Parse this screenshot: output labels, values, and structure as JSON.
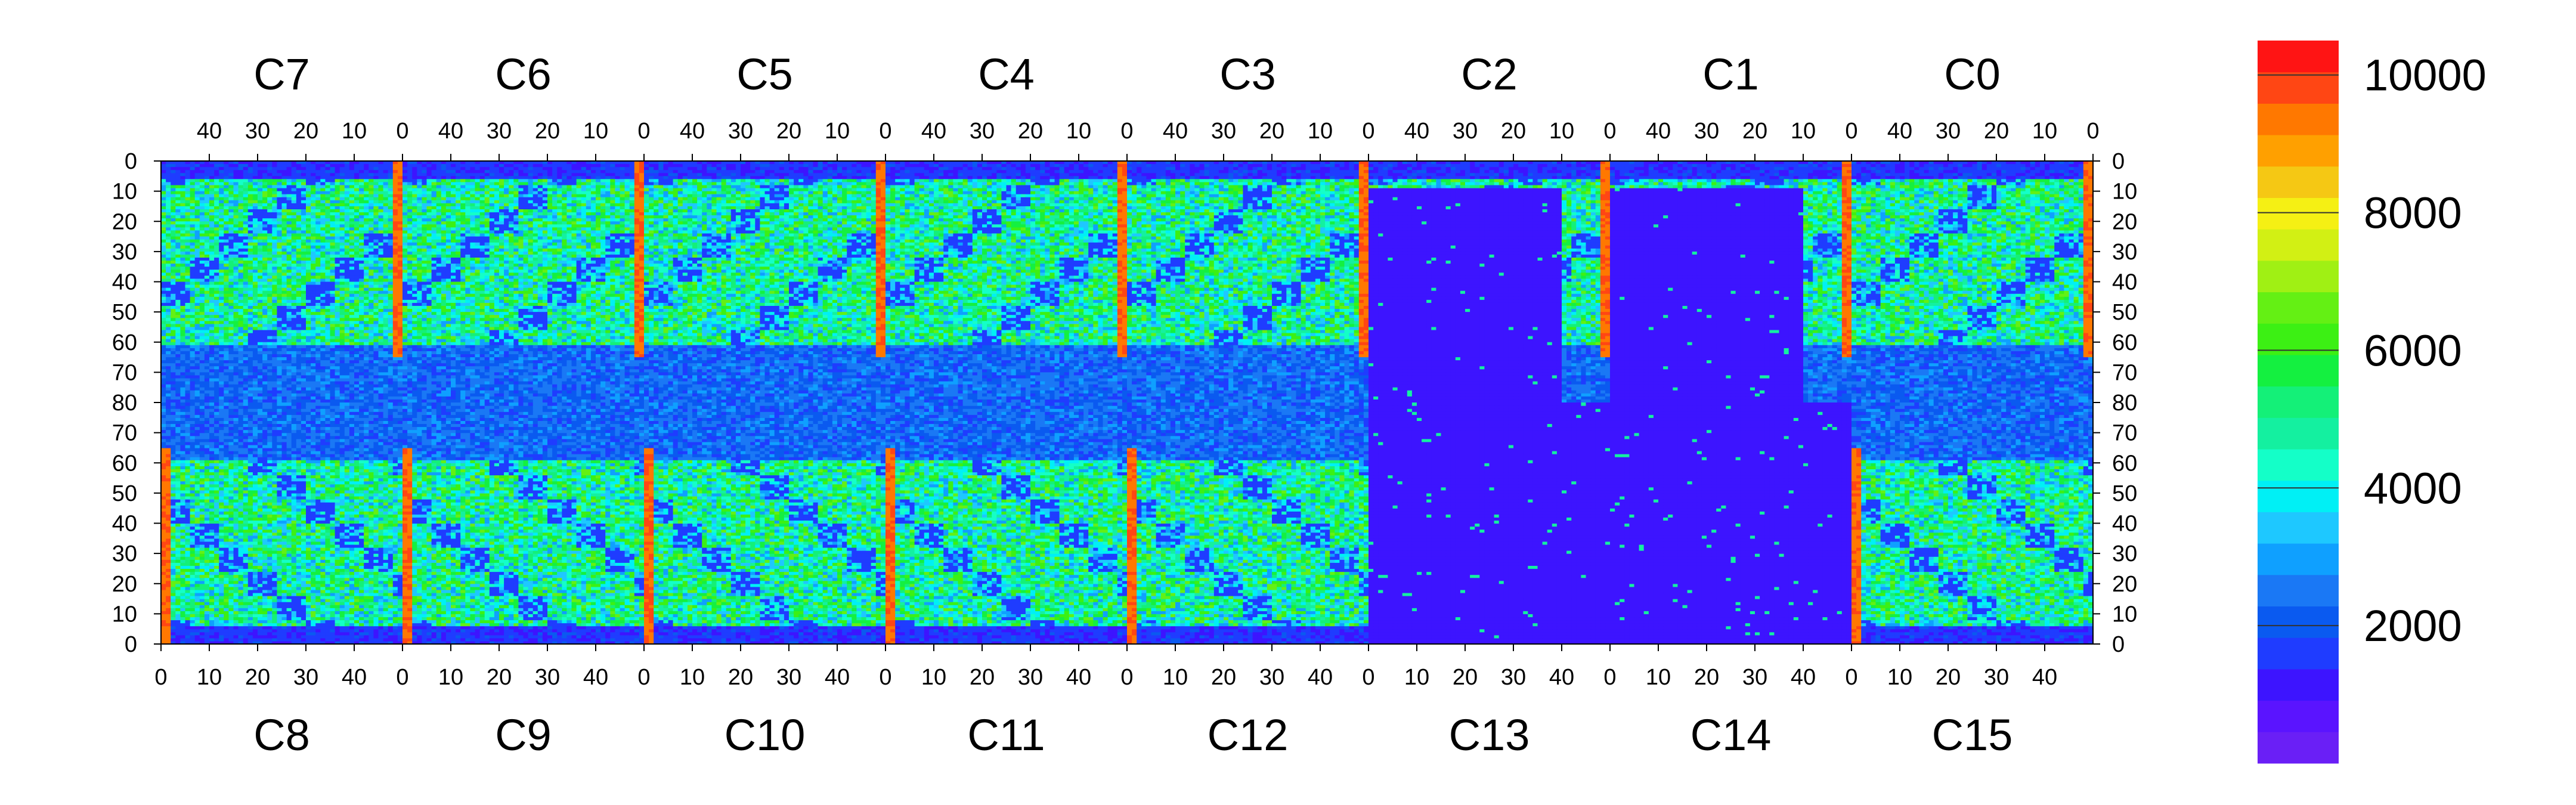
{
  "chart_data": {
    "type": "heatmap",
    "title": "",
    "xlabel": "",
    "ylabel": "",
    "grid": false,
    "legend": "colorbar-right",
    "top_chips": [
      "C7",
      "C6",
      "C5",
      "C4",
      "C3",
      "C2",
      "C1",
      "C0"
    ],
    "bottom_chips": [
      "C8",
      "C9",
      "C10",
      "C11",
      "C12",
      "C13",
      "C14",
      "C15"
    ],
    "top_x_ticks": [
      "40",
      "30",
      "20",
      "10",
      "0"
    ],
    "bottom_x_ticks": [
      "0",
      "10",
      "20",
      "30",
      "40"
    ],
    "top_half_y_ticks": [
      "0",
      "10",
      "20",
      "30",
      "40",
      "50",
      "60",
      "70",
      "80"
    ],
    "bottom_half_y_ticks": [
      "80",
      "70",
      "60",
      "50",
      "40",
      "30",
      "20",
      "10",
      "0"
    ],
    "chip_columns": 50,
    "chip_rows": 80,
    "z_range": [
      0,
      10500
    ],
    "colorbar_ticks": [
      "2000",
      "4000",
      "6000",
      "8000",
      "10000"
    ],
    "colorbar_levels": [
      0,
      500,
      1000,
      1500,
      2000,
      2500,
      3000,
      3500,
      4000,
      4500,
      5000,
      5500,
      6000,
      6500,
      7000,
      7500,
      8000,
      8500,
      9000,
      9500,
      10000,
      10500
    ],
    "colors": [
      "#6a1ff6",
      "#5a14ff",
      "#3d14ff",
      "#1f3cff",
      "#0a5af0",
      "#1a78f5",
      "#0fa0ff",
      "#1ec8ff",
      "#00f0f5",
      "#14ffc8",
      "#14f0a0",
      "#14f078",
      "#14f040",
      "#3cf014",
      "#64f014",
      "#a0f014",
      "#d2f014",
      "#f5f014",
      "#f5c814",
      "#ffa000",
      "#ff7800",
      "#ff4614",
      "#ff1414"
    ],
    "approx_levels_by_region": {
      "background_min": 500,
      "typical_active_area": 4500,
      "high_edge_columns": 9500,
      "C13_C14_region": 600
    }
  }
}
